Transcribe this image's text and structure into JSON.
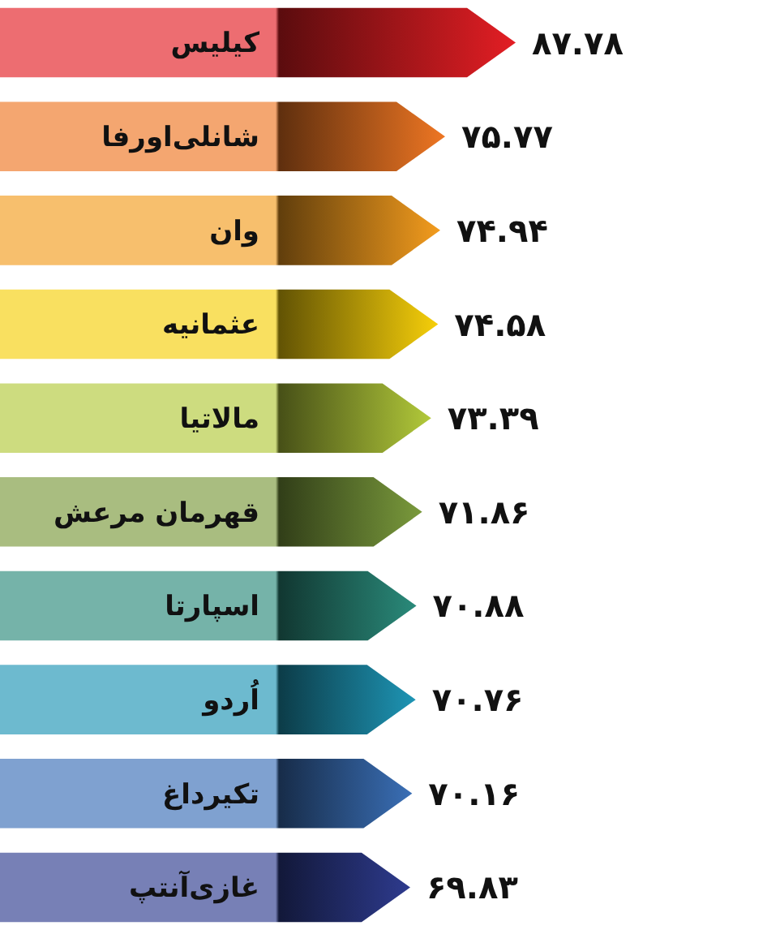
{
  "chart_data": {
    "type": "bar",
    "orientation": "horizontal",
    "categories": [
      "کیلیس",
      "شانلی‌اورفا",
      "وان",
      "عثمانیه",
      "مالاتیا",
      "قهرمان مرعش",
      "اسپارتا",
      "اُردو",
      "تکیرداغ",
      "غازی‌آنتپ"
    ],
    "values": [
      87.78,
      75.77,
      74.94,
      74.58,
      73.39,
      71.86,
      70.88,
      70.76,
      70.16,
      69.83
    ],
    "value_labels": [
      "۸۷.۷۸",
      "۷۵.۷۷",
      "۷۴.۹۴",
      "۷۴.۵۸",
      "۷۳.۳۹",
      "۷۱.۸۶",
      "۷۰.۸۸",
      "۷۰.۷۶",
      "۷۰.۱۶",
      "۶۹.۸۳"
    ],
    "colors": [
      "#e31e24",
      "#ee7623",
      "#f39c1e",
      "#f6cf0a",
      "#b2c93a",
      "#7a9a3c",
      "#2a8a7a",
      "#1e95b5",
      "#3a6fb6",
      "#2e3b8e"
    ]
  }
}
